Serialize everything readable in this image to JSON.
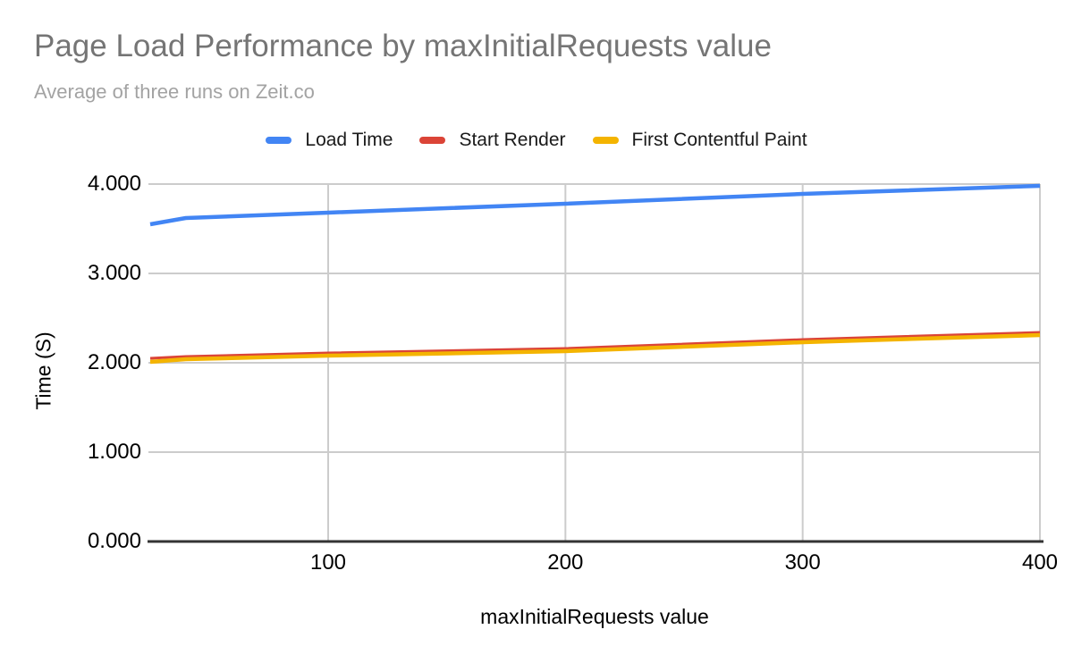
{
  "header": {
    "title": "Page Load Performance by maxInitialRequests value",
    "subtitle": "Average of three runs on Zeit.co"
  },
  "chart_data": {
    "type": "line",
    "title": "Page Load Performance by maxInitialRequests value",
    "subtitle": "Average of three runs on Zeit.co",
    "xlabel": "maxInitialRequests value",
    "ylabel": "Time (S)",
    "legend_position": "top",
    "grid": true,
    "xlim": [
      25,
      400
    ],
    "ylim": [
      0,
      4
    ],
    "x": [
      25,
      40,
      100,
      200,
      300,
      400
    ],
    "series": [
      {
        "name": "Load Time",
        "color": "#4285F4",
        "values": [
          3.55,
          3.62,
          3.68,
          3.78,
          3.89,
          3.98
        ]
      },
      {
        "name": "Start Render",
        "color": "#DB4437",
        "values": [
          2.05,
          2.07,
          2.11,
          2.16,
          2.26,
          2.34
        ]
      },
      {
        "name": "First Contentful Paint",
        "color": "#F4B400",
        "values": [
          2.01,
          2.04,
          2.08,
          2.13,
          2.23,
          2.31
        ]
      }
    ],
    "x_ticks": [
      {
        "value": 100,
        "label": "100"
      },
      {
        "value": 200,
        "label": "200"
      },
      {
        "value": 300,
        "label": "300"
      },
      {
        "value": 400,
        "label": "400"
      }
    ],
    "y_ticks": [
      {
        "value": 0,
        "label": "0.000"
      },
      {
        "value": 1,
        "label": "1.000"
      },
      {
        "value": 2,
        "label": "2.000"
      },
      {
        "value": 3,
        "label": "3.000"
      },
      {
        "value": 4,
        "label": "4.000"
      }
    ],
    "colors": {
      "gridline": "#cccccc",
      "axis_line": "#333333"
    }
  }
}
